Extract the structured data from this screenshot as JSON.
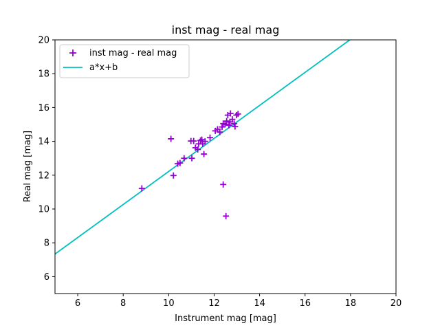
{
  "chart_data": {
    "type": "scatter",
    "title": "inst mag - real mag",
    "xlabel": "Instrument mag [mag]",
    "ylabel": "Real mag [mag]",
    "xlim": [
      5,
      20
    ],
    "ylim": [
      5,
      20
    ],
    "xticks": [
      6,
      8,
      10,
      12,
      14,
      16,
      18,
      20
    ],
    "yticks": [
      6,
      8,
      10,
      12,
      14,
      16,
      18,
      20
    ],
    "grid": false,
    "legend_position": "upper-left",
    "series": [
      {
        "name": "inst mag - real mag",
        "kind": "scatter",
        "marker": "+",
        "color": "#9400d3",
        "points": [
          [
            8.82,
            11.22
          ],
          [
            10.1,
            14.15
          ],
          [
            10.21,
            11.98
          ],
          [
            10.4,
            12.68
          ],
          [
            10.5,
            12.72
          ],
          [
            10.68,
            13.0
          ],
          [
            10.98,
            14.02
          ],
          [
            11.02,
            13.0
          ],
          [
            11.1,
            14.02
          ],
          [
            11.18,
            13.62
          ],
          [
            11.28,
            13.52
          ],
          [
            11.32,
            13.85
          ],
          [
            11.4,
            14.05
          ],
          [
            11.46,
            14.1
          ],
          [
            11.5,
            13.85
          ],
          [
            11.55,
            13.25
          ],
          [
            11.6,
            14.0
          ],
          [
            11.82,
            14.22
          ],
          [
            12.05,
            14.62
          ],
          [
            12.15,
            14.72
          ],
          [
            12.25,
            14.55
          ],
          [
            12.35,
            14.85
          ],
          [
            12.4,
            11.45
          ],
          [
            12.4,
            15.05
          ],
          [
            12.48,
            15.0
          ],
          [
            12.52,
            9.58
          ],
          [
            12.55,
            15.2
          ],
          [
            12.6,
            15.55
          ],
          [
            12.65,
            14.95
          ],
          [
            12.7,
            15.15
          ],
          [
            12.72,
            15.65
          ],
          [
            12.8,
            15.3
          ],
          [
            12.88,
            15.05
          ],
          [
            12.92,
            14.88
          ],
          [
            12.98,
            15.55
          ],
          [
            13.05,
            15.62
          ]
        ]
      },
      {
        "name": "a*x+b",
        "kind": "line",
        "color": "#00bfbf",
        "slope": 0.9767,
        "intercept": 2.452
      }
    ]
  }
}
